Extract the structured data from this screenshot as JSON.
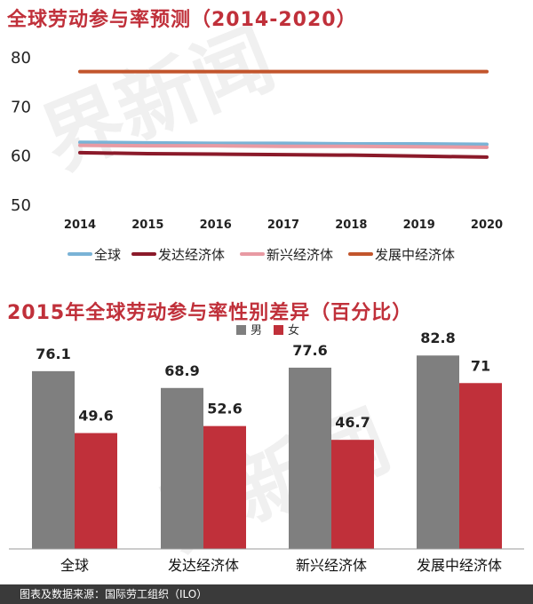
{
  "chart_data": [
    {
      "type": "line",
      "title": "全球劳动参与率预测（2014-2020）",
      "x": [
        "2014",
        "2015",
        "2016",
        "2017",
        "2018",
        "2019",
        "2020"
      ],
      "yticks": [
        "50",
        "60",
        "70",
        "80"
      ],
      "ylim": [
        50,
        80
      ],
      "grid": false,
      "legend_position": "bottom",
      "series": [
        {
          "name": "全球",
          "color": "#7ab3d6",
          "values": [
            62.6,
            62.5,
            62.4,
            62.4,
            62.3,
            62.3,
            62.2
          ]
        },
        {
          "name": "发达经济体",
          "color": "#8b1a2a",
          "values": [
            60.5,
            60.3,
            60.2,
            60.1,
            60.0,
            59.8,
            59.6
          ]
        },
        {
          "name": "新兴经济体",
          "color": "#e89aa3",
          "values": [
            62.0,
            61.9,
            61.9,
            61.8,
            61.8,
            61.7,
            61.6
          ]
        },
        {
          "name": "发展中经济体",
          "color": "#c2552c",
          "values": [
            77.0,
            77.0,
            77.0,
            77.0,
            77.0,
            77.0,
            77.0
          ]
        }
      ]
    },
    {
      "type": "bar",
      "title": "2015年全球劳动参与率性别差异（百分比）",
      "categories": [
        "全球",
        "发达经济体",
        "新兴经济体",
        "发展中经济体"
      ],
      "legend_position": "top",
      "ylim": [
        0,
        100
      ],
      "series": [
        {
          "name": "男",
          "color": "#7f7f7f",
          "values": [
            76.1,
            68.9,
            77.6,
            82.8
          ],
          "labels": [
            "76.1",
            "68.9",
            "77.6",
            "82.8"
          ]
        },
        {
          "name": "女",
          "color": "#c0303a",
          "values": [
            49.6,
            52.6,
            46.7,
            71
          ],
          "labels": [
            "49.6",
            "52.6",
            "46.7",
            "71"
          ]
        }
      ]
    }
  ],
  "footer": {
    "source": "图表及数据来源：国际劳工组织（ILO）"
  }
}
